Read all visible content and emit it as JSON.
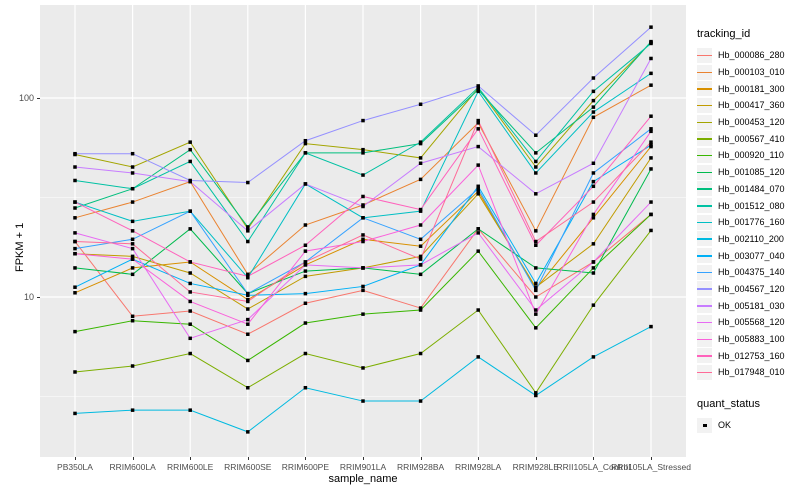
{
  "figure": {
    "y_axis": {
      "title": "FPKM + 1",
      "ticks": [
        {
          "label": "100",
          "value": 100
        },
        {
          "label": "10",
          "value": 10
        }
      ]
    },
    "x_axis": {
      "title": "sample_name"
    },
    "legend": {
      "tracking_title": "tracking_id",
      "quant_title": "quant_status",
      "quant_item_label": "OK"
    }
  },
  "colors": {
    "panel_bg": "#EBEBEB",
    "grid_major": "#FFFFFF",
    "grid_minor": "#FFFFFF",
    "tick_label": "#4D4D4D",
    "marker": "#000000",
    "legend_key_bg": "#F2F2F2"
  },
  "chart_data": {
    "type": "line",
    "title": "",
    "xlabel": "sample_name",
    "ylabel": "FPKM + 1",
    "y_scale": "log10",
    "ylim": [
      1.58,
      280
    ],
    "grid": {
      "major_breaks": [
        10,
        100
      ],
      "minor_breaks": [
        3.162,
        31.62
      ]
    },
    "legend_position": "right",
    "marker": {
      "shape": "square",
      "size": 3.5,
      "color": "#000000",
      "legend_label": "OK"
    },
    "categories": [
      "PB350LA",
      "RRIM600LA",
      "RRIM600LE",
      "RRIM600SE",
      "RRIM600PE",
      "RRIM901LA",
      "RRIM928BA",
      "RRIM928LA",
      "RRIM928LE",
      "RRII105LA_Control",
      "RRII105LA_Stressed"
    ],
    "series": [
      {
        "name": "Hb_000086_280",
        "color": "#F8766D",
        "values": [
          19,
          8,
          8.5,
          6.5,
          9.3,
          10.8,
          8.8,
          22,
          10,
          15,
          26
        ]
      },
      {
        "name": "Hb_000103_010",
        "color": "#EA8331",
        "values": [
          25,
          30,
          38,
          13,
          23,
          29,
          39,
          75,
          21.5,
          80,
          116
        ]
      },
      {
        "name": "Hb_000181_300",
        "color": "#D89000",
        "values": [
          10.5,
          14,
          15,
          9.7,
          14.5,
          19.5,
          18,
          34,
          11,
          25,
          57
        ]
      },
      {
        "name": "Hb_000417_360",
        "color": "#C09B00",
        "values": [
          16.5,
          16,
          13.2,
          8.7,
          12.7,
          14,
          16,
          33,
          11.2,
          18.5,
          50
        ]
      },
      {
        "name": "Hb_000453_120",
        "color": "#A3A500",
        "values": [
          52,
          45,
          60,
          22,
          59,
          55,
          50,
          112,
          45,
          97,
          190
        ]
      },
      {
        "name": "Hb_000567_410",
        "color": "#7CAE00",
        "values": [
          4.2,
          4.5,
          5.2,
          3.5,
          5.2,
          4.4,
          5.2,
          8.6,
          3.3,
          9.1,
          21.6
        ]
      },
      {
        "name": "Hb_000920_110",
        "color": "#39B600",
        "values": [
          6.7,
          7.6,
          7.3,
          4.8,
          7.4,
          8.2,
          8.6,
          17,
          7.0,
          14,
          26
        ]
      },
      {
        "name": "Hb_001085_120",
        "color": "#00BB4E",
        "values": [
          14,
          13,
          22,
          10.4,
          13.5,
          14,
          13,
          22,
          14,
          13.2,
          44
        ]
      },
      {
        "name": "Hb_001484_070",
        "color": "#00BF7D",
        "values": [
          28,
          35,
          55,
          22.5,
          53,
          53,
          59,
          110,
          53,
          90,
          192
        ]
      },
      {
        "name": "Hb_001512_080",
        "color": "#00C1A3",
        "values": [
          38.5,
          35,
          48,
          19,
          53,
          41,
          60,
          113,
          48,
          108,
          188
        ]
      },
      {
        "name": "Hb_001776_160",
        "color": "#00BFC4",
        "values": [
          30,
          24,
          27,
          12.5,
          37,
          25,
          27,
          108,
          42,
          85,
          133
        ]
      },
      {
        "name": "Hb_002110_200",
        "color": "#00BAE0",
        "values": [
          2.6,
          2.7,
          2.7,
          2.1,
          3.5,
          3.0,
          3.0,
          5.0,
          3.2,
          5.0,
          7.1
        ]
      },
      {
        "name": "Hb_003077_040",
        "color": "#00B0F6",
        "values": [
          11.2,
          15.5,
          11.7,
          10.2,
          10.4,
          11.3,
          14.5,
          36,
          11.7,
          38,
          58
        ]
      },
      {
        "name": "Hb_004375_140",
        "color": "#35A2FF",
        "values": [
          17.5,
          19.5,
          27,
          10.4,
          15,
          25,
          19.5,
          35,
          10.8,
          42,
          70
        ]
      },
      {
        "name": "Hb_004567_120",
        "color": "#9590FF",
        "values": [
          52.5,
          52.5,
          38.5,
          37.6,
          61,
          77,
          93,
          115,
          65,
          126,
          227
        ]
      },
      {
        "name": "Hb_005181_030",
        "color": "#C77CFF",
        "values": [
          45,
          42,
          38,
          21.5,
          37,
          28.5,
          47,
          57,
          33,
          47,
          158
        ]
      },
      {
        "name": "Hb_005568_120",
        "color": "#E76BF3",
        "values": [
          21,
          17.5,
          6.2,
          7.7,
          14.5,
          14,
          14.5,
          21,
          8.6,
          15,
          30
        ]
      },
      {
        "name": "Hb_005883_100",
        "color": "#FA62DB",
        "values": [
          16.5,
          15.5,
          9.5,
          7.3,
          17,
          19,
          23,
          46,
          8.2,
          26,
          68
        ]
      },
      {
        "name": "Hb_012753_160",
        "color": "#FF62BC",
        "values": [
          30,
          21.5,
          15,
          12.7,
          18.2,
          32,
          27.5,
          70,
          18.2,
          36,
          81
        ]
      },
      {
        "name": "Hb_017948_010",
        "color": "#FF6A98",
        "values": [
          19,
          18.5,
          10.6,
          9.5,
          15,
          20.5,
          15.5,
          77,
          19,
          30,
          60
        ]
      }
    ]
  }
}
